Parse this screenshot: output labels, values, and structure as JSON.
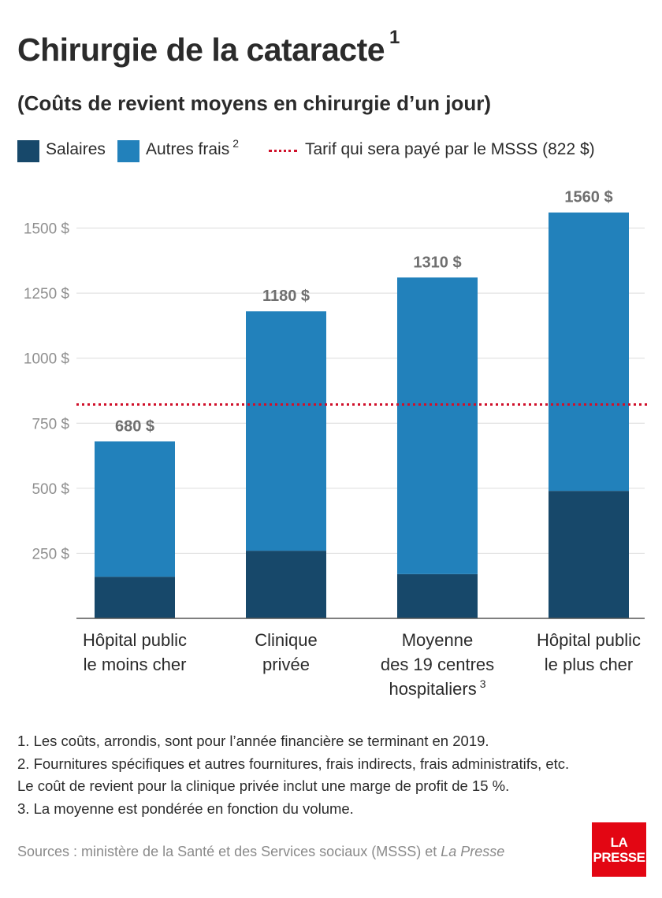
{
  "title": "Chirurgie de la cataracte",
  "title_note": "1",
  "subtitle": "(Coûts de revient moyens en chirurgie d’un jour)",
  "legend": {
    "salaires": "Salaires",
    "autres": "Autres frais",
    "autres_note": "2",
    "tarif": "Tarif qui sera payé par le MSSS (822 $)"
  },
  "colors": {
    "salaires": "#17486a",
    "autres": "#2281bb",
    "tarif": "#d0102a",
    "axis_text": "#8f8f8f",
    "grid": "#dcdcdc"
  },
  "chart_data": {
    "type": "bar",
    "stacked": true,
    "categories": [
      [
        "Hôpital public",
        "le moins cher"
      ],
      [
        "Clinique",
        "privée"
      ],
      [
        "Moyenne",
        "des 19 centres",
        "hospitaliers"
      ],
      [
        "Hôpital public",
        "le plus cher"
      ]
    ],
    "category_notes": [
      "",
      "",
      "3",
      ""
    ],
    "series": [
      {
        "name": "Salaires",
        "values": [
          160,
          260,
          170,
          490
        ]
      },
      {
        "name": "Autres frais",
        "values": [
          520,
          920,
          1140,
          1070
        ]
      }
    ],
    "totals": [
      680,
      1180,
      1310,
      1560
    ],
    "total_labels": [
      "680 $",
      "1180 $",
      "1310 $",
      "1560 $"
    ],
    "reference_line": {
      "value": 822,
      "name": "Tarif qui sera payé par le MSSS (822 $)"
    },
    "yticks": [
      250,
      500,
      750,
      1000,
      1250,
      1500
    ],
    "ytick_labels": [
      "250 $",
      "500 $",
      "750 $",
      "1000 $",
      "1250 $",
      "1500 $"
    ],
    "ylim": [
      0,
      1650
    ],
    "grid": true,
    "legend_position": "top"
  },
  "notes": [
    "1. Les coûts, arrondis, sont pour l’année financière se terminant en 2019.",
    "2. Fournitures spécifiques et autres fournitures, frais indirects, frais administratifs, etc.",
    "Le coût de revient pour la clinique privée inclut une marge de profit de 15 %.",
    "3. La moyenne est pondérée en fonction du volume."
  ],
  "source": {
    "text": "Sources : ministère de la Santé et des Services sociaux (MSSS) et",
    "italic": "La Presse"
  },
  "logo": {
    "line1": "LA",
    "line2": "PRESSE"
  }
}
